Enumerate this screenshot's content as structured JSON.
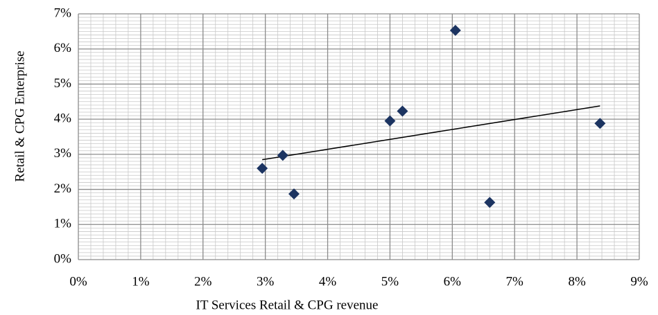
{
  "chart_data": {
    "type": "scatter",
    "x_label": "IT Services Retail & CPG revenue",
    "y_label": "Retail & CPG Enterprise",
    "x": [
      2.95,
      3.28,
      3.46,
      5.0,
      5.2,
      6.05,
      6.6,
      8.37
    ],
    "values": [
      2.6,
      2.97,
      1.87,
      3.95,
      4.23,
      6.53,
      1.63,
      3.88
    ],
    "color": "#1c3461",
    "marker": "diamond",
    "trendline": "linear",
    "xlim": [
      0,
      9
    ],
    "xticks": [
      {
        "value": 0,
        "label": "0%"
      },
      {
        "value": 1,
        "label": "1%"
      },
      {
        "value": 2,
        "label": "2%"
      },
      {
        "value": 3,
        "label": "3%"
      },
      {
        "value": 4,
        "label": "4%"
      },
      {
        "value": 5,
        "label": "5%"
      },
      {
        "value": 6,
        "label": "6%"
      },
      {
        "value": 7,
        "label": "7%"
      },
      {
        "value": 8,
        "label": "8%"
      },
      {
        "value": 9,
        "label": "9%"
      }
    ],
    "ylim": [
      0,
      7
    ],
    "yticks": [
      {
        "value": 0,
        "label": "0%"
      },
      {
        "value": 1,
        "label": "1%"
      },
      {
        "value": 2,
        "label": "2%"
      },
      {
        "value": 3,
        "label": "3%"
      },
      {
        "value": 4,
        "label": "4%"
      },
      {
        "value": 5,
        "label": "5%"
      },
      {
        "value": 6,
        "label": "6%"
      },
      {
        "value": 7,
        "label": "7%"
      }
    ],
    "grid": true
  }
}
